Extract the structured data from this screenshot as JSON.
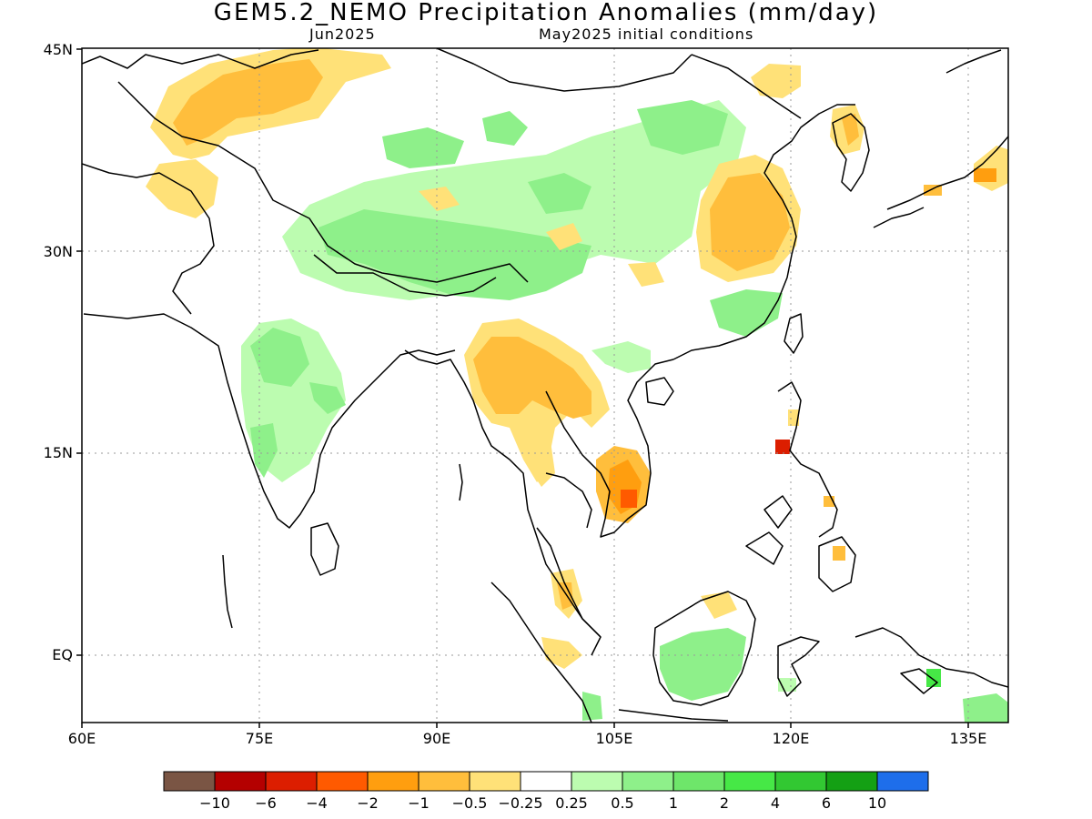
{
  "title": "GEM5.2_NEMO Precipitation Anomalies (mm/day)",
  "subtitle_left": "Jun2025",
  "subtitle_right": "May2025 initial conditions",
  "lat_labels": [
    "45N",
    "30N",
    "15N",
    "EQ"
  ],
  "lon_labels": [
    "60E",
    "75E",
    "90E",
    "105E",
    "120E",
    "135E"
  ],
  "legend": {
    "labels": [
      "−10",
      "−6",
      "−4",
      "−2",
      "−1",
      "−0.5",
      "−0.25",
      "0.25",
      "0.5",
      "1",
      "2",
      "4",
      "6",
      "10"
    ],
    "colors": [
      "#7a5544",
      "#b40000",
      "#dc1e00",
      "#ff5a00",
      "#ff9e0f",
      "#ffbe3c",
      "#ffe178",
      "#ffffff",
      "#bcfcb0",
      "#8ef08a",
      "#6ee66a",
      "#46e846",
      "#32c832",
      "#14a014",
      "#1e6eeb"
    ]
  },
  "map": {
    "region": "60E-140E, 6S-45N",
    "anomaly_regions": [
      {
        "name": "Central Asia north of Pakistan",
        "category": "-0.5 to -1"
      },
      {
        "name": "Eastern China",
        "category": "-1 to -2"
      },
      {
        "name": "Myanmar and Thailand",
        "category": "-1 to -2"
      },
      {
        "name": "Southern Vietnam",
        "category": "-2 to -4"
      },
      {
        "name": "Northern Luzon",
        "category": "-4 to -6"
      },
      {
        "name": "Tibetan Plateau and Himalayas",
        "category": "0.25 to 1"
      },
      {
        "name": "Central India",
        "category": "0.25 to 0.5"
      },
      {
        "name": "Borneo",
        "category": "0.25 to 0.5"
      },
      {
        "name": "Western Japan",
        "category": "-1 to -4"
      }
    ]
  }
}
